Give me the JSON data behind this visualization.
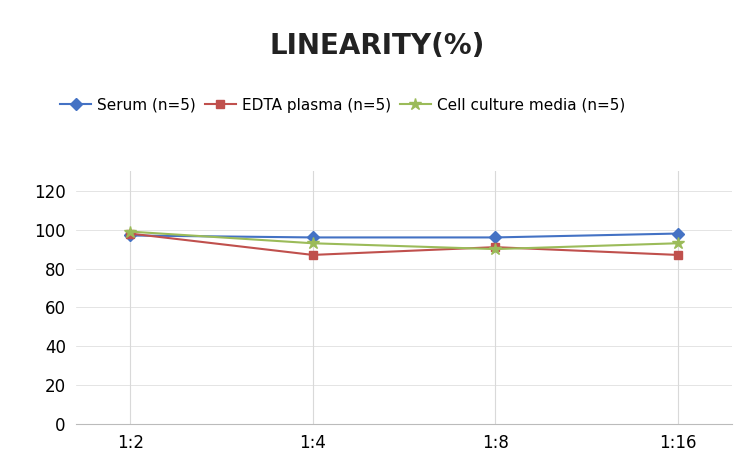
{
  "title": "LINEARITY(%)",
  "x_labels": [
    "1:2",
    "1:4",
    "1:8",
    "1:16"
  ],
  "x_positions": [
    0,
    1,
    2,
    3
  ],
  "series": [
    {
      "label": "Serum (n=5)",
      "values": [
        97,
        96,
        96,
        98
      ],
      "color": "#4472C4",
      "marker": "D",
      "markersize": 6
    },
    {
      "label": "EDTA plasma (n=5)",
      "values": [
        98,
        87,
        91,
        87
      ],
      "color": "#C0504D",
      "marker": "s",
      "markersize": 6
    },
    {
      "label": "Cell culture media (n=5)",
      "values": [
        99,
        93,
        90,
        93
      ],
      "color": "#9BBB59",
      "marker": "*",
      "markersize": 9
    }
  ],
  "ylim": [
    0,
    130
  ],
  "yticks": [
    0,
    20,
    40,
    60,
    80,
    100,
    120
  ],
  "background_color": "#FFFFFF",
  "title_fontsize": 20,
  "legend_fontsize": 11,
  "tick_fontsize": 12,
  "grid_color": "#D9D9D9"
}
